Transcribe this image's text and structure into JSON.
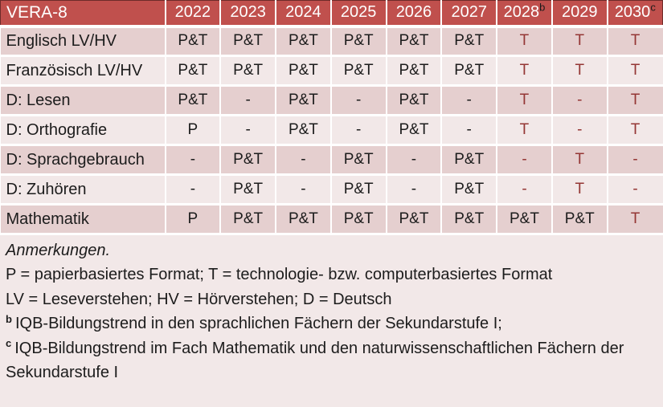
{
  "colors": {
    "header_bg": "#C0504D",
    "header_text": "#FFFFFF",
    "row_band_dark": "#E5CFCF",
    "row_band_light": "#F2E8E8",
    "notes_bg": "#F2E8E8",
    "future_text": "#943634",
    "body_text": "#1C1C1C"
  },
  "table": {
    "title": "VERA-8",
    "columns": [
      {
        "label": "2022",
        "sup": ""
      },
      {
        "label": "2023",
        "sup": ""
      },
      {
        "label": "2024",
        "sup": ""
      },
      {
        "label": "2025",
        "sup": ""
      },
      {
        "label": "2026",
        "sup": ""
      },
      {
        "label": "2027",
        "sup": ""
      },
      {
        "label": "2028",
        "sup": "b"
      },
      {
        "label": "2029",
        "sup": ""
      },
      {
        "label": "2030",
        "sup": "c"
      }
    ],
    "rows": [
      {
        "label": "Englisch LV/HV",
        "band": "dark",
        "cells": [
          {
            "value": "P&T",
            "red": false
          },
          {
            "value": "P&T",
            "red": false
          },
          {
            "value": "P&T",
            "red": false
          },
          {
            "value": "P&T",
            "red": false
          },
          {
            "value": "P&T",
            "red": false
          },
          {
            "value": "P&T",
            "red": false
          },
          {
            "value": "T",
            "red": true
          },
          {
            "value": "T",
            "red": true
          },
          {
            "value": "T",
            "red": true
          }
        ]
      },
      {
        "label": "Französisch LV/HV",
        "band": "light",
        "cells": [
          {
            "value": "P&T",
            "red": false
          },
          {
            "value": "P&T",
            "red": false
          },
          {
            "value": "P&T",
            "red": false
          },
          {
            "value": "P&T",
            "red": false
          },
          {
            "value": "P&T",
            "red": false
          },
          {
            "value": "P&T",
            "red": false
          },
          {
            "value": "T",
            "red": true
          },
          {
            "value": "T",
            "red": true
          },
          {
            "value": "T",
            "red": true
          }
        ]
      },
      {
        "label": "D: Lesen",
        "band": "dark",
        "cells": [
          {
            "value": "P&T",
            "red": false
          },
          {
            "value": "-",
            "red": false
          },
          {
            "value": "P&T",
            "red": false
          },
          {
            "value": "-",
            "red": false
          },
          {
            "value": "P&T",
            "red": false
          },
          {
            "value": "-",
            "red": false
          },
          {
            "value": "T",
            "red": true
          },
          {
            "value": "-",
            "red": true
          },
          {
            "value": "T",
            "red": true
          }
        ]
      },
      {
        "label": "D: Orthografie",
        "band": "light",
        "cells": [
          {
            "value": "P",
            "red": false
          },
          {
            "value": "-",
            "red": false
          },
          {
            "value": "P&T",
            "red": false
          },
          {
            "value": "-",
            "red": false
          },
          {
            "value": "P&T",
            "red": false
          },
          {
            "value": "-",
            "red": false
          },
          {
            "value": "T",
            "red": true
          },
          {
            "value": "-",
            "red": true
          },
          {
            "value": "T",
            "red": true
          }
        ]
      },
      {
        "label": "D: Sprachgebrauch",
        "band": "dark",
        "cells": [
          {
            "value": "-",
            "red": false
          },
          {
            "value": "P&T",
            "red": false
          },
          {
            "value": "-",
            "red": false
          },
          {
            "value": "P&T",
            "red": false
          },
          {
            "value": "-",
            "red": false
          },
          {
            "value": "P&T",
            "red": false
          },
          {
            "value": "-",
            "red": true
          },
          {
            "value": "T",
            "red": true
          },
          {
            "value": "-",
            "red": true
          }
        ]
      },
      {
        "label": "D: Zuhören",
        "band": "light",
        "cells": [
          {
            "value": "-",
            "red": false
          },
          {
            "value": "P&T",
            "red": false
          },
          {
            "value": "-",
            "red": false
          },
          {
            "value": "P&T",
            "red": false
          },
          {
            "value": "-",
            "red": false
          },
          {
            "value": "P&T",
            "red": false
          },
          {
            "value": "-",
            "red": true
          },
          {
            "value": "T",
            "red": true
          },
          {
            "value": "-",
            "red": true
          }
        ]
      },
      {
        "label": "Mathematik",
        "band": "dark",
        "cells": [
          {
            "value": "P",
            "red": false
          },
          {
            "value": "P&T",
            "red": false
          },
          {
            "value": "P&T",
            "red": false
          },
          {
            "value": "P&T",
            "red": false
          },
          {
            "value": "P&T",
            "red": false
          },
          {
            "value": "P&T",
            "red": false
          },
          {
            "value": "P&T",
            "red": false
          },
          {
            "value": "P&T",
            "red": false
          },
          {
            "value": "T",
            "red": true
          }
        ]
      }
    ]
  },
  "notes": {
    "title": "Anmerkungen.",
    "line_formats": "P = papierbasiertes Format; T = technologie- bzw. computerbasiertes Format",
    "line_abbreviations": "LV = Leseverstehen; HV = Hörverstehen; D = Deutsch",
    "note_b": {
      "sup": "b",
      "text": "IQB-Bildungstrend in den sprachlichen Fächern der Sekundarstufe I;"
    },
    "note_c": {
      "sup": "c",
      "text": "IQB-Bildungstrend im Fach Mathematik und den naturwissenschaftlichen Fächern der Sekundarstufe I"
    }
  }
}
